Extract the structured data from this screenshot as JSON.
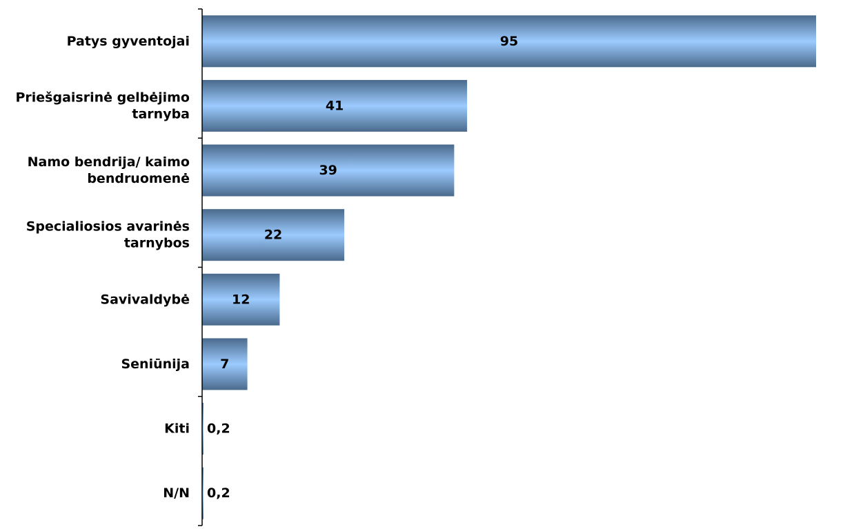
{
  "chart_data": {
    "type": "bar",
    "orientation": "horizontal",
    "title": "",
    "xlabel": "",
    "ylabel": "",
    "categories": [
      [
        "Patys gyventojai"
      ],
      [
        "Priešgaisrinė gelbėjimo",
        "tarnyba"
      ],
      [
        "Namo bendrija/ kaimo",
        "bendruomenė"
      ],
      [
        "Specialiosios avarinės",
        "tarnybos"
      ],
      [
        "Savivaldybė"
      ],
      [
        "Seniūnija"
      ],
      [
        "Kiti"
      ],
      [
        "N/N"
      ]
    ],
    "values": [
      95,
      41,
      39,
      22,
      12,
      7,
      0.2,
      0.2
    ],
    "value_labels": [
      "95",
      "41",
      "39",
      "22",
      "12",
      "7",
      "0,2",
      "0,2"
    ],
    "xlim": [
      0,
      100
    ],
    "grid": false,
    "legend": "none",
    "colors": {
      "bar_edge": "#4a6a8c",
      "bar_center": "#9ccbff",
      "axis": "#000000"
    }
  }
}
